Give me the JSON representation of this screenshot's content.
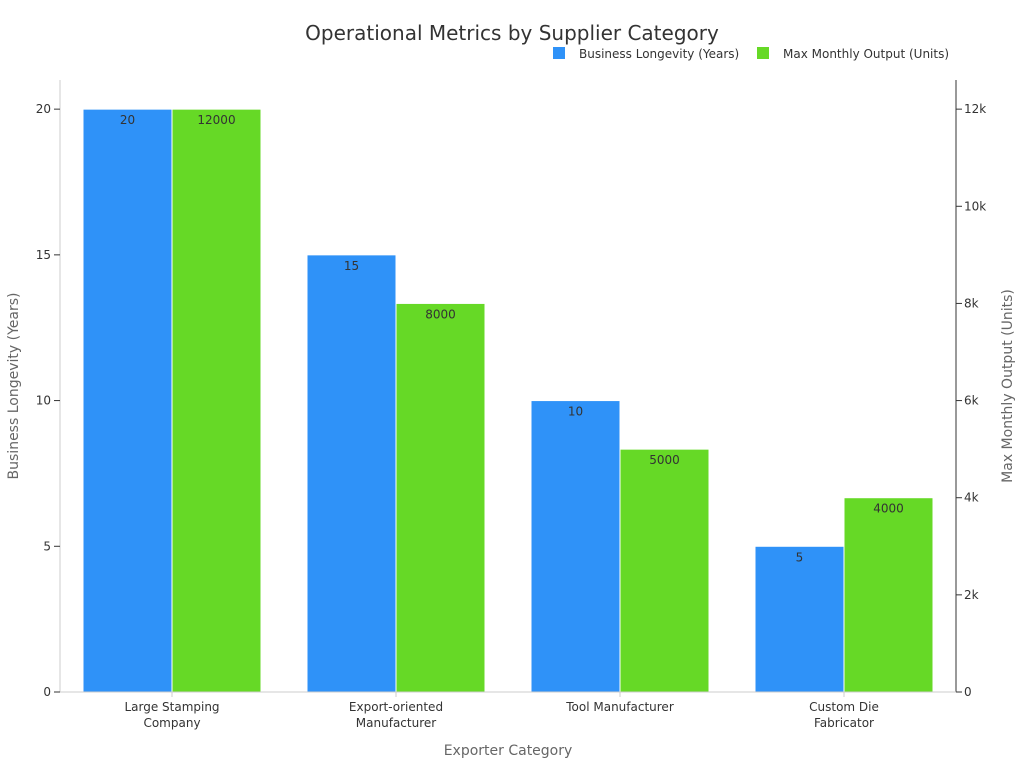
{
  "chart_data": {
    "type": "bar",
    "title": "Operational Metrics by Supplier Category",
    "xlabel": "Exporter Category",
    "ylabel": "Business Longevity (Years)",
    "y2label": "Max Monthly Output (Units)",
    "categories": [
      [
        "Large Stamping",
        "Company"
      ],
      [
        "Export-oriented",
        "Manufacturer"
      ],
      [
        "Tool Manufacturer"
      ],
      [
        "Custom Die",
        "Fabricator"
      ]
    ],
    "series": [
      {
        "name": "Business Longevity (Years)",
        "axis": "left",
        "color": "#2f92f8",
        "values": [
          20,
          15,
          10,
          5
        ]
      },
      {
        "name": "Max Monthly Output (Units)",
        "axis": "right",
        "color": "#66d926",
        "values": [
          12000,
          8000,
          5000,
          4000
        ]
      }
    ],
    "ylim": [
      0,
      21
    ],
    "y2lim": [
      0,
      12600
    ],
    "yticks": [
      0,
      5,
      10,
      15,
      20
    ],
    "y2ticks": [
      0,
      2000,
      4000,
      6000,
      8000,
      10000,
      12000
    ],
    "y2ticklabels": [
      "0",
      "2k",
      "4k",
      "6k",
      "8k",
      "10k",
      "12k"
    ],
    "legend_position": "top-right",
    "grid": false
  }
}
